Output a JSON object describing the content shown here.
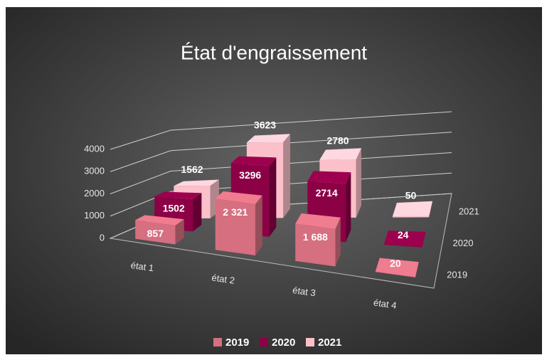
{
  "chart_data": {
    "type": "bar3d",
    "title": "État d'engraissement",
    "categories": [
      "état 1",
      "état 2",
      "état 3",
      "état 4"
    ],
    "series": [
      {
        "name": "2019",
        "color": "#d66f80",
        "values": [
          857,
          2321,
          1688,
          20
        ],
        "value_labels": [
          "857",
          "2 321",
          "1 688",
          "20"
        ]
      },
      {
        "name": "2020",
        "color": "#8c0046",
        "values": [
          1502,
          3296,
          2714,
          24
        ]
      },
      {
        "name": "2021",
        "color": "#fbc0c9",
        "values": [
          1562,
          3623,
          2780,
          50
        ]
      }
    ],
    "ylim": [
      0,
      4000
    ],
    "yticks": [
      0,
      1000,
      2000,
      3000,
      4000
    ],
    "grid": true,
    "legend": "bottom"
  }
}
